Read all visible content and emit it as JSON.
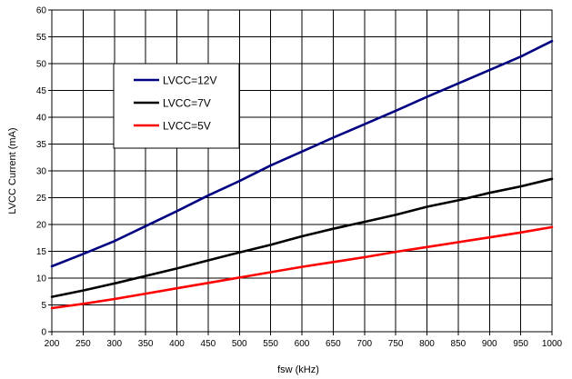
{
  "chart_data": {
    "type": "line",
    "xlabel": "fsw (kHz)",
    "ylabel": "LVCC Current (mA)",
    "xlim": [
      200,
      1000
    ],
    "ylim": [
      0,
      60
    ],
    "xticks": [
      200,
      250,
      300,
      350,
      400,
      450,
      500,
      550,
      600,
      650,
      700,
      750,
      800,
      850,
      900,
      950,
      1000
    ],
    "yticks": [
      0,
      5,
      10,
      15,
      20,
      25,
      30,
      35,
      40,
      45,
      50,
      55,
      60
    ],
    "grid": true,
    "legend_position": "upper-left-inside",
    "series": [
      {
        "name": "LVCC=12V",
        "color": "#000080",
        "x": [
          200,
          250,
          300,
          350,
          400,
          450,
          500,
          550,
          600,
          650,
          700,
          750,
          800,
          850,
          900,
          950,
          1000
        ],
        "y": [
          12.2,
          14.5,
          16.9,
          19.7,
          22.5,
          25.4,
          28.1,
          31.0,
          33.6,
          36.2,
          38.7,
          41.2,
          43.8,
          46.3,
          48.8,
          51.3,
          54.2
        ]
      },
      {
        "name": "LVCC=7V",
        "color": "#000000",
        "x": [
          200,
          250,
          300,
          350,
          400,
          450,
          500,
          550,
          600,
          650,
          700,
          750,
          800,
          850,
          900,
          950,
          1000
        ],
        "y": [
          6.5,
          7.7,
          9.0,
          10.4,
          11.8,
          13.3,
          14.8,
          16.2,
          17.8,
          19.2,
          20.5,
          21.8,
          23.3,
          24.5,
          25.9,
          27.1,
          28.5
        ]
      },
      {
        "name": "LVCC=5V",
        "color": "#ff0000",
        "x": [
          200,
          250,
          300,
          350,
          400,
          450,
          500,
          550,
          600,
          650,
          700,
          750,
          800,
          850,
          900,
          950,
          1000
        ],
        "y": [
          4.4,
          5.2,
          6.1,
          7.1,
          8.1,
          9.1,
          10.1,
          11.1,
          12.1,
          13.0,
          13.9,
          14.9,
          15.8,
          16.7,
          17.6,
          18.5,
          19.5
        ]
      }
    ]
  }
}
